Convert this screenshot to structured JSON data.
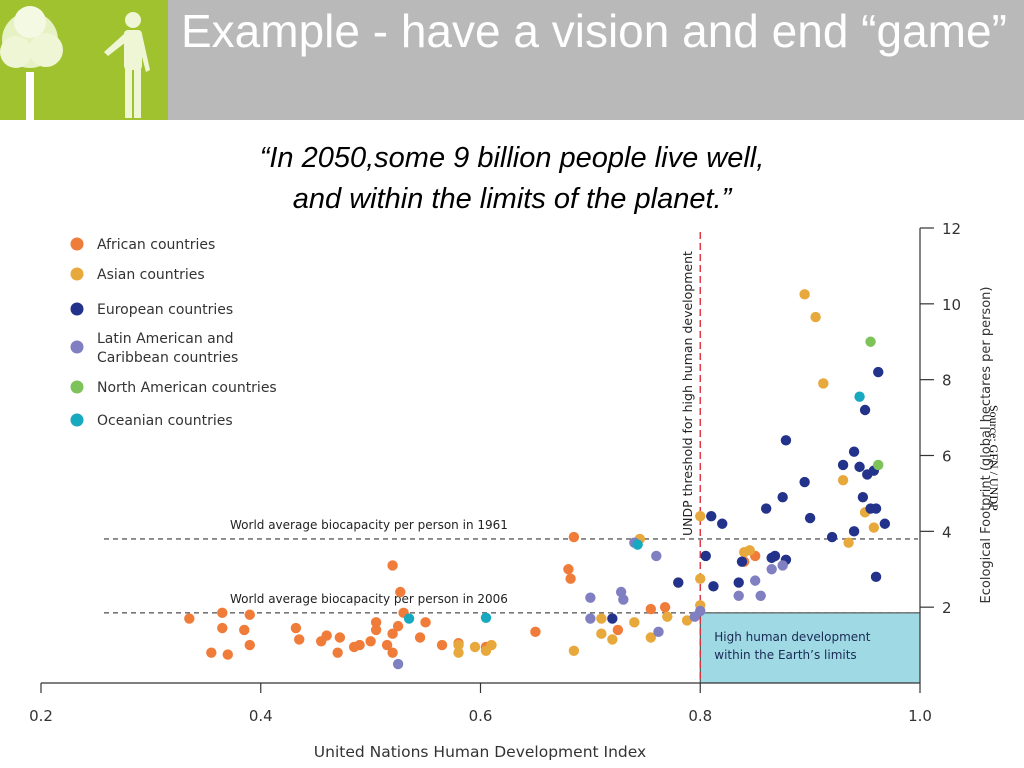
{
  "slide": {
    "title": "Example - have a vision and end “game”",
    "quote_line1": "“In 2050,some 9 billion people live well,",
    "quote_line2": "and within the limits of the planet.”",
    "source": "Source:  GFN / UNDP"
  },
  "colors": {
    "header_bg": "#b9b9b9",
    "logo_bg": "#9fc22e",
    "african": "#f07c3a",
    "asian": "#e8a93c",
    "european": "#23328a",
    "latin": "#7f7fc1",
    "north_american": "#7dc35a",
    "oceanian": "#16a9c0",
    "threshold_line": "#e0303a",
    "target_box": "#9fd9e4"
  },
  "chart_data": {
    "type": "scatter",
    "xlabel": "United Nations Human Development Index",
    "ylabel": "Ecological Footprint (global hectares per person)",
    "xlim": [
      0.2,
      1.0
    ],
    "ylim": [
      0,
      12
    ],
    "xticks": [
      "0.2",
      "0.4",
      "0.6",
      "0.8",
      "1.0"
    ],
    "yticks": [
      "2",
      "4",
      "6",
      "8",
      "10",
      "12"
    ],
    "legend_position": "top-left",
    "reference_lines": {
      "biocapacity_1961": {
        "label": "World average biocapacity per person in 1961",
        "y": 3.8
      },
      "biocapacity_2006": {
        "label": "World average biocapacity per person in 2006",
        "y": 1.85
      },
      "undp_threshold": {
        "label": "UNDP threshold for high human development",
        "x": 0.8
      }
    },
    "target_region_label_line1": "High human development",
    "target_region_label_line2": "within the Earth’s limits",
    "series": [
      {
        "name": "African countries",
        "color": "#f07c3a",
        "points": [
          [
            0.335,
            1.7
          ],
          [
            0.355,
            0.8
          ],
          [
            0.37,
            0.75
          ],
          [
            0.365,
            1.45
          ],
          [
            0.385,
            1.4
          ],
          [
            0.39,
            1.0
          ],
          [
            0.365,
            1.85
          ],
          [
            0.39,
            1.8
          ],
          [
            0.432,
            1.45
          ],
          [
            0.435,
            1.15
          ],
          [
            0.455,
            1.1
          ],
          [
            0.46,
            1.25
          ],
          [
            0.47,
            0.8
          ],
          [
            0.472,
            1.2
          ],
          [
            0.485,
            0.95
          ],
          [
            0.49,
            1.0
          ],
          [
            0.5,
            1.1
          ],
          [
            0.505,
            1.4
          ],
          [
            0.505,
            1.6
          ],
          [
            0.515,
            1.0
          ],
          [
            0.52,
            1.3
          ],
          [
            0.52,
            0.8
          ],
          [
            0.525,
            1.5
          ],
          [
            0.52,
            3.1
          ],
          [
            0.527,
            2.4
          ],
          [
            0.53,
            1.85
          ],
          [
            0.545,
            1.2
          ],
          [
            0.55,
            1.6
          ],
          [
            0.565,
            1.0
          ],
          [
            0.58,
            1.05
          ],
          [
            0.605,
            0.95
          ],
          [
            0.65,
            1.35
          ],
          [
            0.68,
            3.0
          ],
          [
            0.682,
            2.75
          ],
          [
            0.685,
            3.85
          ],
          [
            0.725,
            1.4
          ],
          [
            0.755,
            1.95
          ],
          [
            0.768,
            2.0
          ],
          [
            0.84,
            3.2
          ],
          [
            0.85,
            3.35
          ]
        ]
      },
      {
        "name": "Asian countries",
        "color": "#e8a93c",
        "points": [
          [
            0.58,
            0.8
          ],
          [
            0.58,
            1.0
          ],
          [
            0.595,
            0.95
          ],
          [
            0.605,
            0.85
          ],
          [
            0.61,
            1.0
          ],
          [
            0.685,
            0.85
          ],
          [
            0.71,
            1.7
          ],
          [
            0.71,
            1.3
          ],
          [
            0.72,
            1.15
          ],
          [
            0.74,
            1.6
          ],
          [
            0.745,
            3.8
          ],
          [
            0.755,
            1.2
          ],
          [
            0.77,
            1.75
          ],
          [
            0.78,
            2.65
          ],
          [
            0.788,
            1.65
          ],
          [
            0.8,
            2.05
          ],
          [
            0.8,
            2.75
          ],
          [
            0.8,
            4.4
          ],
          [
            0.84,
            3.45
          ],
          [
            0.845,
            3.5
          ],
          [
            0.895,
            10.25
          ],
          [
            0.905,
            9.65
          ],
          [
            0.912,
            7.9
          ],
          [
            0.93,
            5.35
          ],
          [
            0.935,
            3.7
          ],
          [
            0.95,
            4.5
          ],
          [
            0.958,
            4.1
          ]
        ]
      },
      {
        "name": "European countries",
        "color": "#23328a",
        "points": [
          [
            0.72,
            1.7
          ],
          [
            0.78,
            2.65
          ],
          [
            0.805,
            3.35
          ],
          [
            0.81,
            4.4
          ],
          [
            0.812,
            2.55
          ],
          [
            0.82,
            4.2
          ],
          [
            0.835,
            2.65
          ],
          [
            0.838,
            3.2
          ],
          [
            0.86,
            4.6
          ],
          [
            0.865,
            3.3
          ],
          [
            0.868,
            3.35
          ],
          [
            0.875,
            4.9
          ],
          [
            0.878,
            3.25
          ],
          [
            0.878,
            6.4
          ],
          [
            0.895,
            5.3
          ],
          [
            0.9,
            4.35
          ],
          [
            0.92,
            3.85
          ],
          [
            0.93,
            5.75
          ],
          [
            0.94,
            6.1
          ],
          [
            0.94,
            4.0
          ],
          [
            0.945,
            5.7
          ],
          [
            0.948,
            4.9
          ],
          [
            0.95,
            7.2
          ],
          [
            0.952,
            5.5
          ],
          [
            0.955,
            4.6
          ],
          [
            0.96,
            4.6
          ],
          [
            0.96,
            2.8
          ],
          [
            0.962,
            8.2
          ],
          [
            0.968,
            4.2
          ],
          [
            0.958,
            5.6
          ]
        ]
      },
      {
        "name": "Latin American and Caribbean countries",
        "color": "#7f7fc1",
        "points": [
          [
            0.525,
            0.5
          ],
          [
            0.7,
            2.25
          ],
          [
            0.7,
            1.7
          ],
          [
            0.728,
            2.4
          ],
          [
            0.73,
            2.2
          ],
          [
            0.74,
            3.7
          ],
          [
            0.76,
            3.35
          ],
          [
            0.762,
            1.35
          ],
          [
            0.795,
            1.75
          ],
          [
            0.8,
            1.9
          ],
          [
            0.835,
            2.3
          ],
          [
            0.85,
            2.7
          ],
          [
            0.855,
            2.3
          ],
          [
            0.865,
            3.0
          ],
          [
            0.875,
            3.1
          ]
        ]
      },
      {
        "name": "North American countries",
        "color": "#7dc35a",
        "points": [
          [
            0.955,
            9.0
          ],
          [
            0.962,
            5.75
          ]
        ]
      },
      {
        "name": "Oceanian countries",
        "color": "#16a9c0",
        "points": [
          [
            0.535,
            1.7
          ],
          [
            0.605,
            1.72
          ],
          [
            0.743,
            3.65
          ],
          [
            0.945,
            7.55
          ]
        ]
      }
    ]
  }
}
